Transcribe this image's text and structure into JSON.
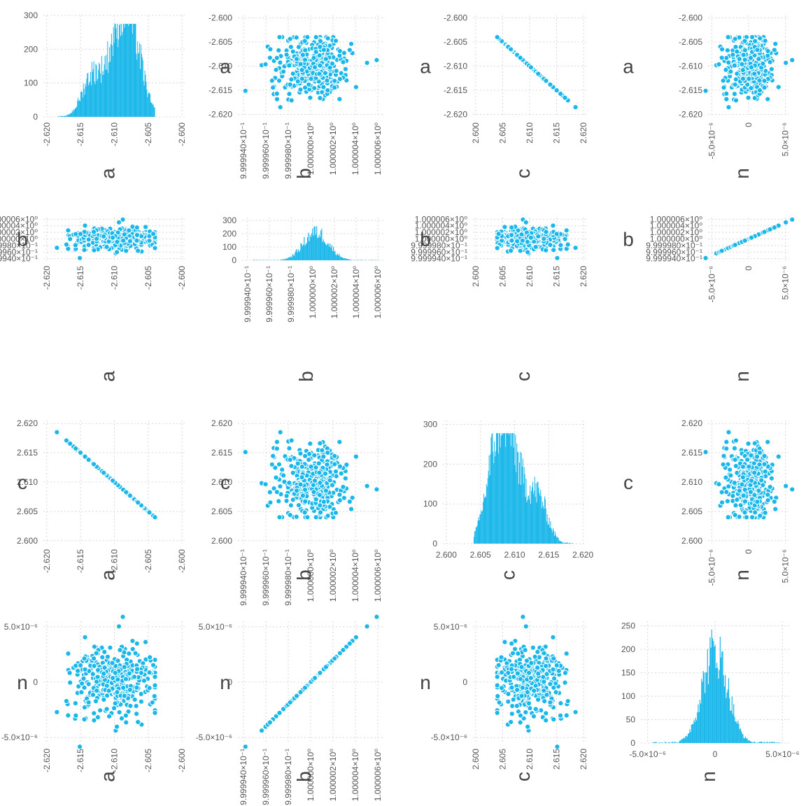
{
  "colors": {
    "series": "#1ab7ea",
    "grid": "#d8d8d8",
    "text": "#444444",
    "tick": "#555555",
    "background": "#ffffff"
  },
  "chart_data": {
    "type": "corner-matrix",
    "parameters": [
      {
        "name": "a",
        "ticks": [
          -2.62,
          -2.615,
          -2.61,
          -2.605,
          -2.6
        ],
        "tick_labels": [
          "-2.620",
          "-2.615",
          "-2.610",
          "-2.605",
          "-2.600"
        ],
        "range": [
          -2.6205,
          -2.5995
        ]
      },
      {
        "name": "b",
        "ticks": [
          0.999994,
          0.999996,
          0.999998,
          1.0,
          1.000002,
          1.000004,
          1.000006
        ],
        "tick_labels": [
          "9.999940×10⁻¹",
          "9.999960×10⁻¹",
          "9.999980×10⁻¹",
          "1.000000×10⁰",
          "1.000002×10⁰",
          "1.000004×10⁰",
          "1.000006×10⁰"
        ],
        "range": [
          0.9999935,
          1.0000065
        ]
      },
      {
        "name": "c",
        "ticks": [
          2.6,
          2.605,
          2.61,
          2.615,
          2.62
        ],
        "tick_labels": [
          "2.600",
          "2.605",
          "2.610",
          "2.615",
          "2.620"
        ],
        "range": [
          2.5995,
          2.6205
        ]
      },
      {
        "name": "n",
        "ticks": [
          -5e-06,
          0,
          5e-06
        ],
        "tick_labels": [
          "-5.0×10⁻⁶",
          "0",
          "5.0×10⁻⁶"
        ],
        "range": [
          -5.5e-06,
          5.5e-06
        ]
      }
    ],
    "histograms": [
      {
        "param": "a",
        "count_ticks": [
          0,
          100,
          200,
          300
        ],
        "count_tick_labels": [
          "0",
          "100",
          "200",
          "300"
        ],
        "count_max": 300,
        "peaks": [
          {
            "x": -2.6133,
            "h": 130
          },
          {
            "x": -2.61,
            "h": 150
          },
          {
            "x": -2.6083,
            "h": 200
          },
          {
            "x": -2.6068,
            "h": 130
          }
        ],
        "max_count": 275,
        "min_x": -2.6185,
        "max_x": -2.604
      },
      {
        "param": "b",
        "count_ticks": [
          0,
          100,
          200,
          300
        ],
        "count_tick_labels": [
          "0",
          "100",
          "200",
          "300"
        ],
        "count_max": 320,
        "peaks": [
          {
            "x": 1.0000003,
            "h": 230
          }
        ],
        "max_count": 255,
        "min_x": 0.9999945,
        "max_x": 1.000006
      },
      {
        "param": "c",
        "count_ticks": [
          0,
          100,
          200,
          300
        ],
        "count_tick_labels": [
          "0",
          "100",
          "200",
          "300"
        ],
        "count_max": 310,
        "peaks": [
          {
            "x": 2.6068,
            "h": 130
          },
          {
            "x": 2.6083,
            "h": 200
          },
          {
            "x": 2.61,
            "h": 150
          },
          {
            "x": 2.6133,
            "h": 130
          }
        ],
        "max_count": 278,
        "min_x": 2.604,
        "max_x": 2.6185
      },
      {
        "param": "n",
        "count_ticks": [
          0,
          50,
          100,
          150,
          200,
          250
        ],
        "count_tick_labels": [
          "0",
          "50",
          "100",
          "150",
          "200",
          "250"
        ],
        "count_max": 260,
        "peaks": [
          {
            "x": 0.0,
            "h": 215
          }
        ],
        "max_count": 245,
        "min_x": -4.6e-06,
        "max_x": 4.8e-06
      }
    ],
    "scatter_relations": {
      "a_vs_c": {
        "slope": -1,
        "intercept": 0,
        "corr": -1.0
      },
      "b_vs_n": {
        "slope": 1,
        "intercept": 1.0,
        "corr": 1.0
      },
      "a_c_range": [
        -2.6185,
        -2.604
      ],
      "b_range": [
        0.999995,
        1.0000059
      ],
      "n_range": [
        -4.5e-06,
        4.8e-06
      ],
      "sample_points": 1200
    }
  }
}
